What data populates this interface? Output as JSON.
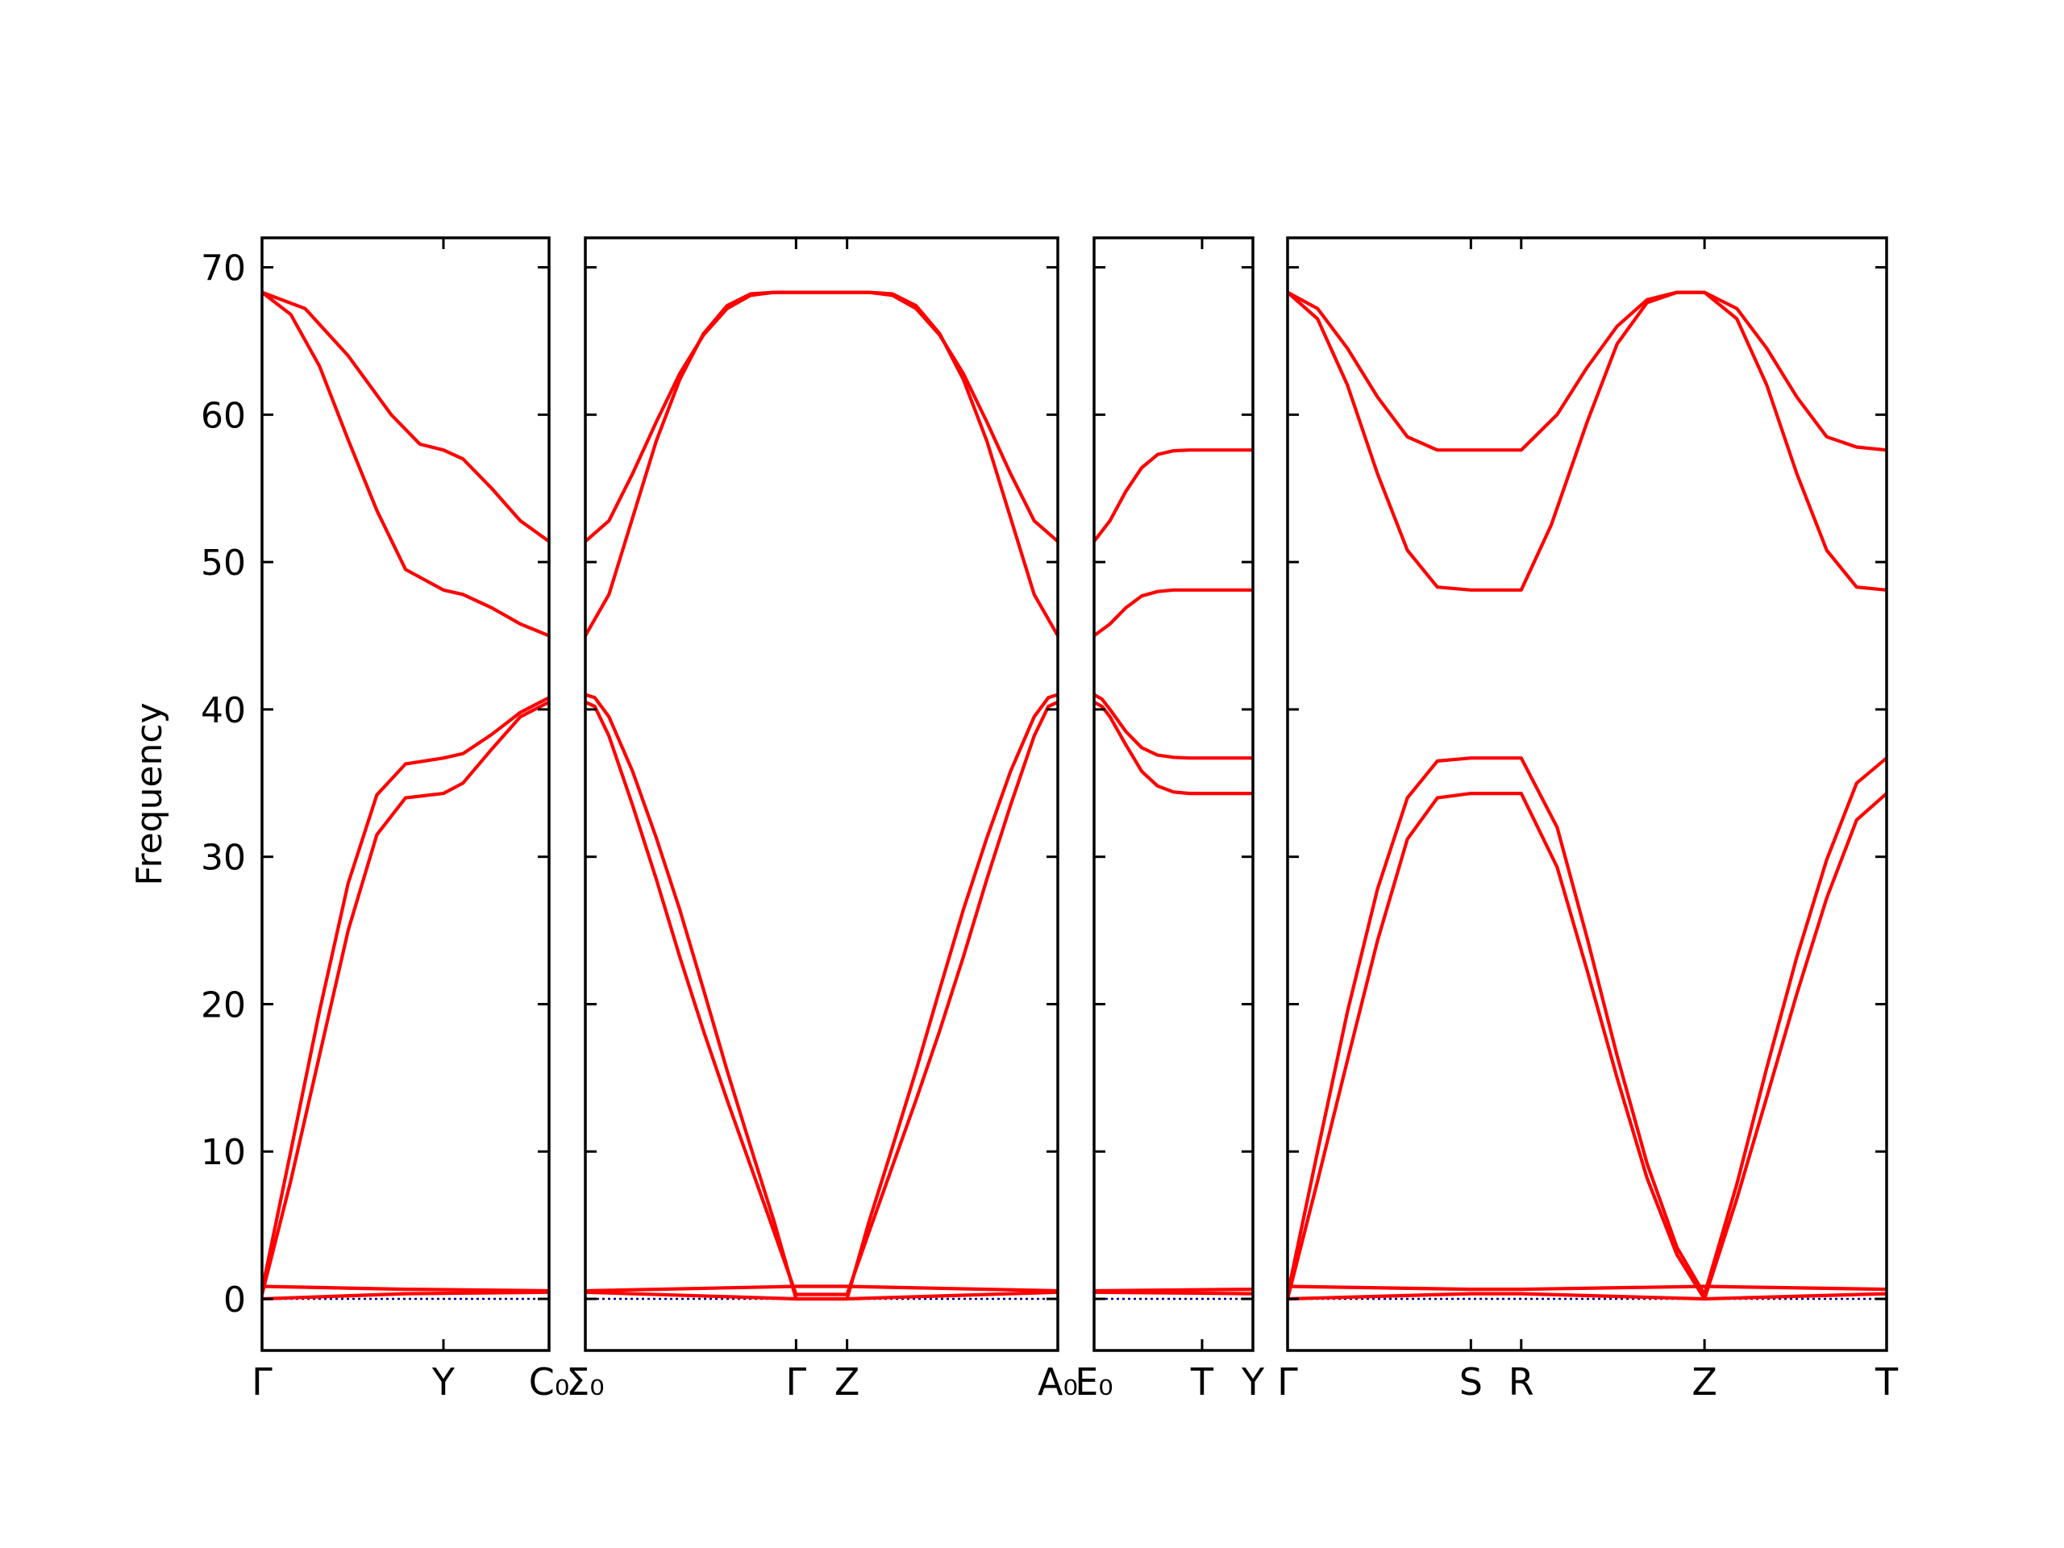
{
  "chart_data": {
    "type": "line",
    "ylabel": "Frequency",
    "ylim": [
      -3.5,
      72
    ],
    "yticks": [
      0,
      10,
      20,
      30,
      40,
      50,
      60,
      70
    ],
    "colors": {
      "band": "#ff0000",
      "zero_line": "#00008b",
      "frame": "#000000"
    },
    "zero_line_style": "dotted",
    "panels": [
      {
        "xlim": [
          0,
          1
        ],
        "xticks": [
          {
            "x": 0.0,
            "label": "Γ"
          },
          {
            "x": 0.632,
            "label": "Y"
          },
          {
            "x": 1.0,
            "label": "C₀"
          }
        ],
        "series": [
          {
            "x": [
              0,
              0.15,
              0.3,
              0.45,
              0.55,
              0.632,
              0.7,
              0.8,
              0.9,
              1.0
            ],
            "y": [
              68.3,
              67.2,
              64.0,
              60.0,
              58.0,
              57.6,
              57.0,
              55.0,
              52.8,
              51.4
            ]
          },
          {
            "x": [
              0,
              0.1,
              0.2,
              0.3,
              0.4,
              0.5,
              0.632,
              0.7,
              0.8,
              0.9,
              1.0
            ],
            "y": [
              68.3,
              66.8,
              63.3,
              58.3,
              53.5,
              49.5,
              48.1,
              47.8,
              46.9,
              45.8,
              45.0
            ]
          },
          {
            "x": [
              0,
              0.1,
              0.2,
              0.3,
              0.4,
              0.5,
              0.632,
              0.7,
              0.8,
              0.9,
              1.0
            ],
            "y": [
              0.6,
              10.0,
              19.5,
              28.2,
              34.2,
              36.3,
              36.7,
              37.0,
              38.3,
              39.8,
              40.8
            ]
          },
          {
            "x": [
              0,
              0.1,
              0.2,
              0.3,
              0.4,
              0.5,
              0.632,
              0.7,
              0.8,
              0.9,
              1.0
            ],
            "y": [
              0.3,
              8.0,
              16.5,
              25.0,
              31.5,
              34.0,
              34.3,
              35.0,
              37.3,
              39.5,
              40.5
            ]
          },
          {
            "x": [
              0,
              0.5,
              1.0
            ],
            "y": [
              0.85,
              0.65,
              0.55
            ]
          },
          {
            "x": [
              0,
              0.5,
              1.0
            ],
            "y": [
              0.0,
              0.35,
              0.45
            ]
          }
        ],
        "zero_line": {
          "x": [
            0,
            1
          ],
          "y": [
            0,
            0
          ]
        }
      },
      {
        "xlim": [
          0,
          1
        ],
        "xticks": [
          {
            "x": 0.0,
            "label": "Σ₀"
          },
          {
            "x": 0.446,
            "label": "Γ"
          },
          {
            "x": 0.554,
            "label": "Z"
          },
          {
            "x": 1.0,
            "label": "A₀"
          }
        ],
        "series": [
          {
            "x": [
              0,
              0.05,
              0.1,
              0.15,
              0.2,
              0.25,
              0.3,
              0.35,
              0.4,
              0.446,
              0.554,
              0.6,
              0.65,
              0.7,
              0.75,
              0.8,
              0.85,
              0.9,
              0.95,
              1.0
            ],
            "y": [
              51.4,
              52.8,
              56.0,
              59.5,
              62.8,
              65.4,
              67.2,
              68.1,
              68.3,
              68.3,
              68.3,
              68.3,
              68.1,
              67.2,
              65.4,
              62.8,
              59.5,
              56.0,
              52.8,
              51.4
            ]
          },
          {
            "x": [
              0,
              0.05,
              0.1,
              0.15,
              0.2,
              0.25,
              0.3,
              0.35,
              0.4,
              0.446,
              0.554,
              0.6,
              0.65,
              0.7,
              0.75,
              0.8,
              0.85,
              0.9,
              0.95,
              1.0
            ],
            "y": [
              45.0,
              47.8,
              53.0,
              58.2,
              62.4,
              65.5,
              67.4,
              68.2,
              68.3,
              68.3,
              68.3,
              68.3,
              68.2,
              67.4,
              65.5,
              62.4,
              58.2,
              53.0,
              47.8,
              45.0
            ]
          },
          {
            "x": [
              0,
              0.02,
              0.05,
              0.1,
              0.15,
              0.2,
              0.25,
              0.3,
              0.35,
              0.4,
              0.446,
              0.554,
              0.6,
              0.65,
              0.7,
              0.75,
              0.8,
              0.85,
              0.9,
              0.95,
              0.98,
              1.0
            ],
            "y": [
              41.0,
              40.8,
              39.5,
              35.8,
              31.3,
              26.4,
              21.0,
              15.5,
              10.3,
              5.2,
              0.0,
              0.0,
              5.2,
              10.3,
              15.5,
              21.0,
              26.4,
              31.3,
              35.8,
              39.5,
              40.8,
              41.0
            ]
          },
          {
            "x": [
              0,
              0.02,
              0.05,
              0.1,
              0.15,
              0.2,
              0.25,
              0.3,
              0.35,
              0.4,
              0.446,
              0.554,
              0.6,
              0.65,
              0.7,
              0.75,
              0.8,
              0.85,
              0.9,
              0.95,
              0.98,
              1.0
            ],
            "y": [
              40.5,
              40.2,
              38.2,
              33.5,
              28.5,
              23.2,
              18.2,
              13.5,
              9.0,
              4.5,
              0.3,
              0.3,
              4.5,
              9.0,
              13.5,
              18.2,
              23.2,
              28.5,
              33.5,
              38.2,
              40.2,
              40.5
            ]
          },
          {
            "x": [
              0,
              0.446,
              0.554,
              1.0
            ],
            "y": [
              0.55,
              0.85,
              0.85,
              0.55
            ]
          },
          {
            "x": [
              0,
              0.446,
              0.554,
              1.0
            ],
            "y": [
              0.45,
              0.0,
              0.0,
              0.45
            ]
          }
        ],
        "zero_line": {
          "x": [
            0,
            1
          ],
          "y": [
            0,
            0
          ]
        }
      },
      {
        "xlim": [
          0,
          1
        ],
        "xticks": [
          {
            "x": 0.0,
            "label": "E₀"
          },
          {
            "x": 0.68,
            "label": "T"
          },
          {
            "x": 1.0,
            "label": "Y"
          }
        ],
        "series": [
          {
            "x": [
              0,
              0.1,
              0.2,
              0.3,
              0.4,
              0.5,
              0.6,
              0.68,
              1.0
            ],
            "y": [
              51.4,
              52.8,
              54.8,
              56.4,
              57.3,
              57.55,
              57.6,
              57.6,
              57.6
            ]
          },
          {
            "x": [
              0,
              0.1,
              0.2,
              0.3,
              0.4,
              0.5,
              0.6,
              0.68,
              1.0
            ],
            "y": [
              45.0,
              45.8,
              46.9,
              47.7,
              48.0,
              48.1,
              48.1,
              48.1,
              48.1
            ]
          },
          {
            "x": [
              0,
              0.05,
              0.1,
              0.2,
              0.3,
              0.4,
              0.5,
              0.6,
              0.68,
              1.0
            ],
            "y": [
              41.0,
              40.7,
              40.0,
              38.5,
              37.4,
              36.9,
              36.75,
              36.7,
              36.7,
              36.7
            ]
          },
          {
            "x": [
              0,
              0.05,
              0.1,
              0.2,
              0.3,
              0.4,
              0.5,
              0.6,
              0.68,
              1.0
            ],
            "y": [
              40.5,
              40.2,
              39.5,
              37.6,
              35.8,
              34.8,
              34.4,
              34.3,
              34.3,
              34.3
            ]
          },
          {
            "x": [
              0,
              1.0
            ],
            "y": [
              0.55,
              0.65
            ]
          },
          {
            "x": [
              0,
              1.0
            ],
            "y": [
              0.45,
              0.35
            ]
          }
        ],
        "zero_line": {
          "x": [
            0,
            1
          ],
          "y": [
            0,
            0
          ]
        }
      },
      {
        "xlim": [
          0,
          1
        ],
        "xticks": [
          {
            "x": 0.0,
            "label": "Γ"
          },
          {
            "x": 0.306,
            "label": "S"
          },
          {
            "x": 0.39,
            "label": "R"
          },
          {
            "x": 0.696,
            "label": "Z"
          },
          {
            "x": 1.0,
            "label": "T"
          }
        ],
        "series": [
          {
            "x": [
              0,
              0.05,
              0.1,
              0.15,
              0.2,
              0.25,
              0.306,
              0.39,
              0.45,
              0.5,
              0.55,
              0.6,
              0.65,
              0.696,
              0.75,
              0.8,
              0.85,
              0.9,
              0.95,
              1.0
            ],
            "y": [
              68.3,
              67.2,
              64.5,
              61.2,
              58.5,
              57.6,
              57.6,
              57.6,
              60.0,
              63.2,
              66.0,
              67.8,
              68.3,
              68.3,
              67.2,
              64.5,
              61.2,
              58.5,
              57.8,
              57.6
            ]
          },
          {
            "x": [
              0,
              0.05,
              0.1,
              0.15,
              0.2,
              0.25,
              0.306,
              0.39,
              0.44,
              0.5,
              0.55,
              0.6,
              0.65,
              0.696,
              0.75,
              0.8,
              0.85,
              0.9,
              0.95,
              1.0
            ],
            "y": [
              68.3,
              66.5,
              62.0,
              56.0,
              50.8,
              48.3,
              48.1,
              48.1,
              52.5,
              59.5,
              64.8,
              67.6,
              68.3,
              68.3,
              66.5,
              62.0,
              56.0,
              50.8,
              48.3,
              48.1
            ]
          },
          {
            "x": [
              0,
              0.05,
              0.1,
              0.15,
              0.2,
              0.25,
              0.306,
              0.39,
              0.45,
              0.5,
              0.55,
              0.6,
              0.65,
              0.696,
              0.75,
              0.8,
              0.85,
              0.9,
              0.95,
              1.0
            ],
            "y": [
              0.3,
              10.0,
              19.5,
              27.8,
              34.0,
              36.5,
              36.7,
              36.7,
              32.0,
              24.5,
              16.5,
              9.2,
              3.5,
              0.3,
              7.8,
              15.7,
              23.2,
              29.8,
              35.0,
              36.7
            ]
          },
          {
            "x": [
              0,
              0.05,
              0.1,
              0.15,
              0.2,
              0.25,
              0.306,
              0.39,
              0.45,
              0.5,
              0.55,
              0.6,
              0.65,
              0.696,
              0.75,
              0.8,
              0.85,
              0.9,
              0.95,
              1.0
            ],
            "y": [
              0.0,
              8.0,
              16.2,
              24.3,
              31.2,
              34.0,
              34.3,
              34.3,
              29.3,
              22.3,
              15.0,
              8.2,
              3.0,
              0.0,
              6.8,
              13.7,
              20.7,
              27.2,
              32.5,
              34.3
            ]
          },
          {
            "x": [
              0,
              0.306,
              0.39,
              0.696,
              1.0
            ],
            "y": [
              0.85,
              0.65,
              0.65,
              0.85,
              0.65
            ]
          },
          {
            "x": [
              0,
              0.306,
              0.39,
              0.696,
              1.0
            ],
            "y": [
              0.0,
              0.35,
              0.35,
              0.0,
              0.35
            ]
          }
        ],
        "zero_line": {
          "x": [
            0,
            1
          ],
          "y": [
            0,
            0
          ]
        }
      }
    ]
  }
}
